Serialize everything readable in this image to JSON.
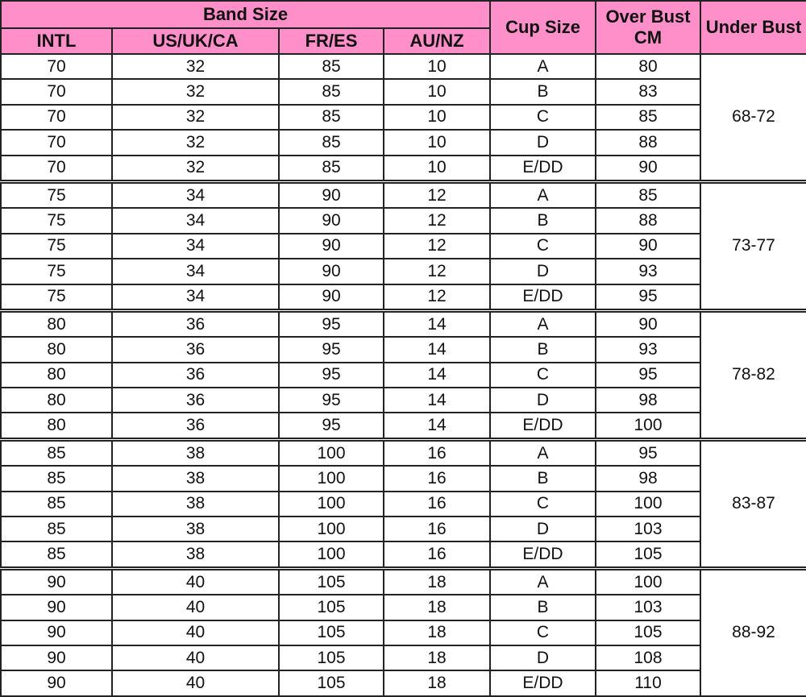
{
  "header": {
    "band_size": "Band Size",
    "cup_size": "Cup Size",
    "over_bust": "Over Bust CM",
    "under_bust": "Under Bust",
    "columns": [
      "INTL",
      "US/UK/CA",
      "FR/ES",
      "AU/NZ"
    ]
  },
  "colors": {
    "header_bg": "#ff8fc8",
    "border": "#222222"
  },
  "groups": [
    {
      "intl": "70",
      "us": "32",
      "fr": "85",
      "au": "10",
      "under": "68-72",
      "rows": [
        [
          "A",
          "80"
        ],
        [
          "B",
          "83"
        ],
        [
          "C",
          "85"
        ],
        [
          "D",
          "88"
        ],
        [
          "E/DD",
          "90"
        ]
      ]
    },
    {
      "intl": "75",
      "us": "34",
      "fr": "90",
      "au": "12",
      "under": "73-77",
      "rows": [
        [
          "A",
          "85"
        ],
        [
          "B",
          "88"
        ],
        [
          "C",
          "90"
        ],
        [
          "D",
          "93"
        ],
        [
          "E/DD",
          "95"
        ]
      ]
    },
    {
      "intl": "80",
      "us": "36",
      "fr": "95",
      "au": "14",
      "under": "78-82",
      "rows": [
        [
          "A",
          "90"
        ],
        [
          "B",
          "93"
        ],
        [
          "C",
          "95"
        ],
        [
          "D",
          "98"
        ],
        [
          "E/DD",
          "100"
        ]
      ]
    },
    {
      "intl": "85",
      "us": "38",
      "fr": "100",
      "au": "16",
      "under": "83-87",
      "rows": [
        [
          "A",
          "95"
        ],
        [
          "B",
          "98"
        ],
        [
          "C",
          "100"
        ],
        [
          "D",
          "103"
        ],
        [
          "E/DD",
          "105"
        ]
      ]
    },
    {
      "intl": "90",
      "us": "40",
      "fr": "105",
      "au": "18",
      "under": "88-92",
      "rows": [
        [
          "A",
          "100"
        ],
        [
          "B",
          "103"
        ],
        [
          "C",
          "105"
        ],
        [
          "D",
          "108"
        ],
        [
          "E/DD",
          "110"
        ]
      ]
    }
  ]
}
